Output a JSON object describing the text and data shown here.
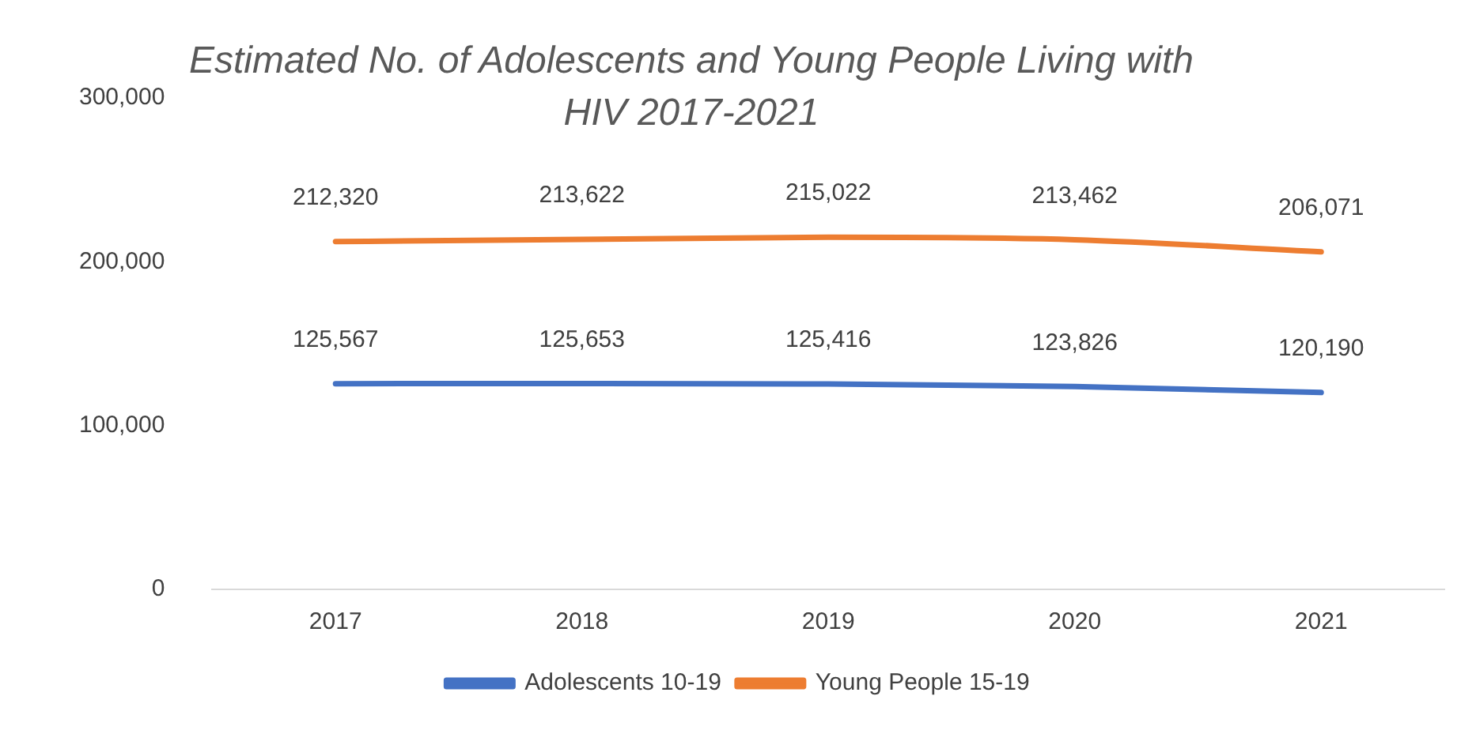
{
  "chart_data": {
    "type": "line",
    "title": "Estimated No. of Adolescents and Young People Living with HIV 2017-2021",
    "categories": [
      "2017",
      "2018",
      "2019",
      "2020",
      "2021"
    ],
    "series": [
      {
        "name": "Adolescents 10-19",
        "color": "#4472c4",
        "values": [
          125567,
          125653,
          125416,
          123826,
          120190
        ],
        "value_labels": [
          "125,567",
          "125,653",
          "125,416",
          "123,826",
          "120,190"
        ]
      },
      {
        "name": "Young People 15-19",
        "color": "#ed7d31",
        "values": [
          212320,
          213622,
          215022,
          213462,
          206071
        ],
        "value_labels": [
          "212,320",
          "213,622",
          "215,022",
          "213,462",
          "206,071"
        ]
      }
    ],
    "ylim": [
      0,
      300000
    ],
    "yticks": [
      0,
      {
        "value": 100000,
        "label": "100,000"
      },
      {
        "value": 200000,
        "label": "200,000"
      },
      {
        "value": 300000,
        "label": "300,000"
      }
    ],
    "grid": false,
    "legend": "bottom",
    "marker": "none",
    "line_style": "solid"
  }
}
